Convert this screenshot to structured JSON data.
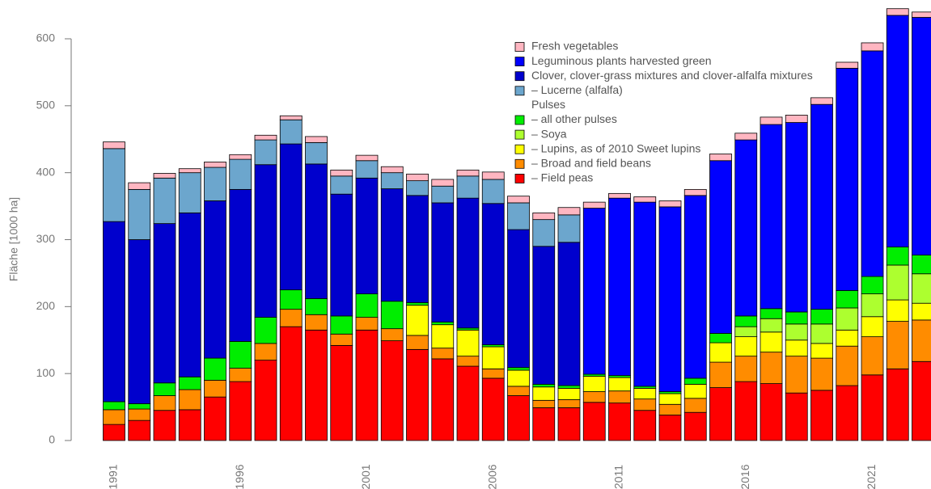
{
  "chart_data": {
    "type": "stacked_bar",
    "y_label": "Fläche [1000 ha]",
    "categories": [
      "1991",
      null,
      null,
      null,
      null,
      "1996",
      null,
      null,
      null,
      null,
      "2001",
      null,
      null,
      null,
      null,
      "2006",
      null,
      null,
      null,
      null,
      "2011",
      null,
      null,
      null,
      null,
      "2016",
      null,
      null,
      null,
      null,
      "2021",
      null,
      null
    ],
    "ylim": [
      0,
      600
    ],
    "yticks": [
      0,
      100,
      200,
      300,
      400,
      500,
      600
    ],
    "legend_header": "Pulses",
    "series": [
      {
        "name": "– Field peas",
        "color": "#ff0000",
        "values": [
          24,
          30,
          45,
          46,
          65,
          88,
          120,
          170,
          165,
          142,
          165,
          149,
          136,
          122,
          111,
          93,
          67,
          49,
          49,
          57,
          56,
          45,
          38,
          42,
          79,
          88,
          85,
          71,
          75,
          82,
          98,
          107,
          118
        ]
      },
      {
        "name": "– Broad and field beans",
        "color": "#ff8c00",
        "values": [
          22,
          17,
          22,
          30,
          25,
          20,
          25,
          26,
          23,
          17,
          19,
          18,
          21,
          16,
          15,
          14,
          14,
          11,
          12,
          16,
          18,
          17,
          16,
          21,
          38,
          38,
          47,
          55,
          48,
          59,
          57,
          71,
          62
        ]
      },
      {
        "name": "– Lupins, as of 2010 Sweet lupins",
        "color": "#ffff00",
        "values": [
          0,
          0,
          0,
          0,
          0,
          0,
          0,
          0,
          0,
          0,
          0,
          0,
          45,
          35,
          39,
          33,
          24,
          20,
          17,
          23,
          20,
          16,
          16,
          21,
          29,
          29,
          30,
          24,
          22,
          24,
          30,
          32,
          25
        ]
      },
      {
        "name": "– Soya",
        "color": "#adff2f",
        "values": [
          0,
          0,
          0,
          0,
          0,
          0,
          0,
          0,
          0,
          0,
          0,
          0,
          0,
          0,
          0,
          0,
          0,
          0,
          0,
          0,
          0,
          0,
          0,
          0,
          0,
          15,
          20,
          24,
          29,
          33,
          34,
          52,
          44
        ]
      },
      {
        "name": "– all other pulses",
        "color": "#00ee00",
        "values": [
          12,
          8,
          19,
          19,
          33,
          40,
          39,
          29,
          24,
          27,
          35,
          41,
          4,
          4,
          3,
          3,
          4,
          4,
          4,
          3,
          3,
          3,
          3,
          9,
          14,
          16,
          15,
          18,
          22,
          26,
          26,
          27,
          28
        ]
      },
      {
        "name": "Clover, clover-grass mixtures and clover-alfalfa mixtures",
        "color": "#0000cd",
        "values": [
          269,
          245,
          238,
          245,
          235,
          227,
          228,
          218,
          201,
          182,
          173,
          168,
          160,
          178,
          194,
          211,
          206,
          206,
          214,
          null,
          null,
          null,
          null,
          null,
          null,
          null,
          null,
          null,
          null,
          null,
          null,
          null,
          null
        ]
      },
      {
        "name": "– Lucerne (alfalfa)",
        "color": "#6ca6cd",
        "values": [
          109,
          75,
          68,
          60,
          50,
          45,
          37,
          36,
          32,
          27,
          26,
          24,
          22,
          25,
          33,
          36,
          40,
          40,
          41,
          null,
          null,
          null,
          null,
          null,
          null,
          null,
          null,
          null,
          null,
          null,
          null,
          null,
          null
        ]
      },
      {
        "name": "Leguminous plants harvested green",
        "color": "#0000ff",
        "values": [
          null,
          null,
          null,
          null,
          null,
          null,
          null,
          null,
          null,
          null,
          null,
          null,
          null,
          null,
          null,
          null,
          null,
          null,
          null,
          248,
          265,
          275,
          276,
          273,
          258,
          263,
          275,
          283,
          306,
          332,
          337,
          346,
          355
        ]
      },
      {
        "name": "Fresh vegetables",
        "color": "#ffb6c1",
        "values": [
          10,
          10,
          7,
          6,
          8,
          7,
          7,
          6,
          9,
          9,
          8,
          9,
          10,
          10,
          9,
          11,
          10,
          10,
          11,
          9,
          7,
          8,
          9,
          9,
          10,
          10,
          11,
          11,
          10,
          9,
          12,
          10,
          8
        ]
      }
    ]
  }
}
